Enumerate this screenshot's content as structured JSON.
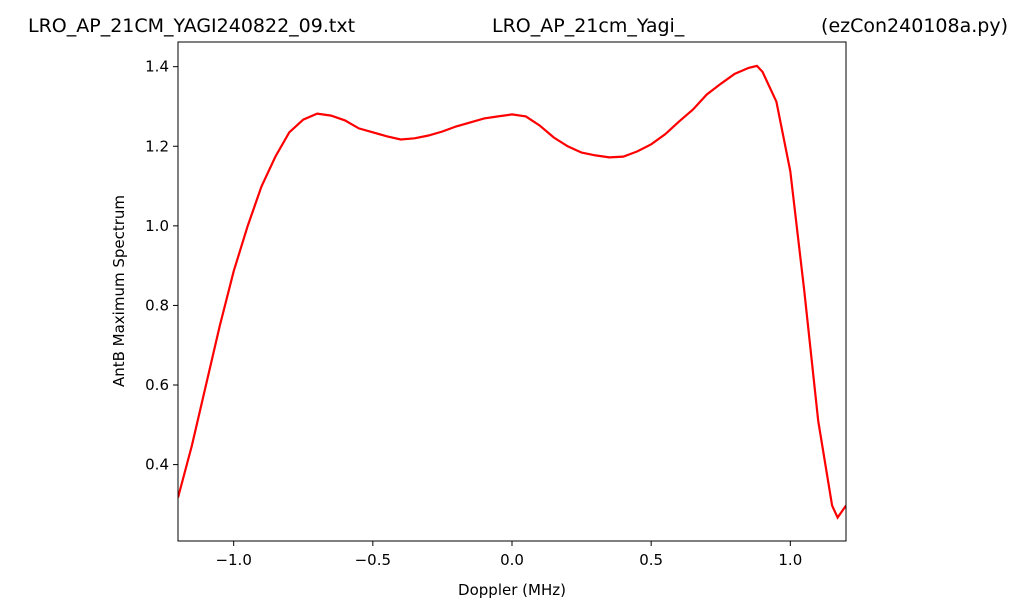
{
  "chart_data": {
    "type": "line",
    "titles": [
      "LRO_AP_21CM_YAGI240822_09.txt",
      "LRO_AP_21cm_Yagi_",
      "(ezCon240108a.py)"
    ],
    "xlabel": "Doppler (MHz)",
    "ylabel": "AntB Maximum Spectrum",
    "x": [
      -1.2,
      -1.15,
      -1.1,
      -1.05,
      -1.0,
      -0.95,
      -0.9,
      -0.85,
      -0.8,
      -0.75,
      -0.7,
      -0.65,
      -0.6,
      -0.55,
      -0.5,
      -0.45,
      -0.4,
      -0.35,
      -0.3,
      -0.25,
      -0.2,
      -0.15,
      -0.1,
      -0.05,
      0,
      0.05,
      0.1,
      0.15,
      0.2,
      0.25,
      0.3,
      0.35,
      0.4,
      0.45,
      0.5,
      0.55,
      0.6,
      0.65,
      0.7,
      0.75,
      0.8,
      0.85,
      0.88,
      0.9,
      0.95,
      1.0,
      1.05,
      1.1,
      1.15,
      1.17,
      1.2
    ],
    "series": [
      {
        "name": "AntB",
        "color": "#ff0000",
        "values": [
          0.317,
          0.448,
          0.598,
          0.748,
          0.886,
          0.999,
          1.099,
          1.174,
          1.235,
          1.267,
          1.282,
          1.277,
          1.265,
          1.245,
          1.235,
          1.225,
          1.217,
          1.22,
          1.227,
          1.237,
          1.25,
          1.26,
          1.27,
          1.275,
          1.28,
          1.275,
          1.252,
          1.222,
          1.2,
          1.184,
          1.177,
          1.172,
          1.174,
          1.187,
          1.205,
          1.23,
          1.262,
          1.292,
          1.33,
          1.357,
          1.382,
          1.397,
          1.402,
          1.387,
          1.312,
          1.137,
          0.836,
          0.51,
          0.297,
          0.267,
          0.297
        ]
      }
    ],
    "xlim": [
      -1.2,
      1.2
    ],
    "ylim": [
      0.208,
      1.462
    ],
    "xticks": [
      {
        "value": -1.0,
        "label": "−1.0"
      },
      {
        "value": -0.5,
        "label": "−0.5"
      },
      {
        "value": 0,
        "label": "0.0"
      },
      0.5,
      {
        "value": 1.0,
        "label": "1.0"
      }
    ],
    "yticks": [
      0.4,
      0.6,
      0.8,
      {
        "value": 1.0,
        "label": "1.0"
      },
      1.2,
      1.4
    ]
  }
}
